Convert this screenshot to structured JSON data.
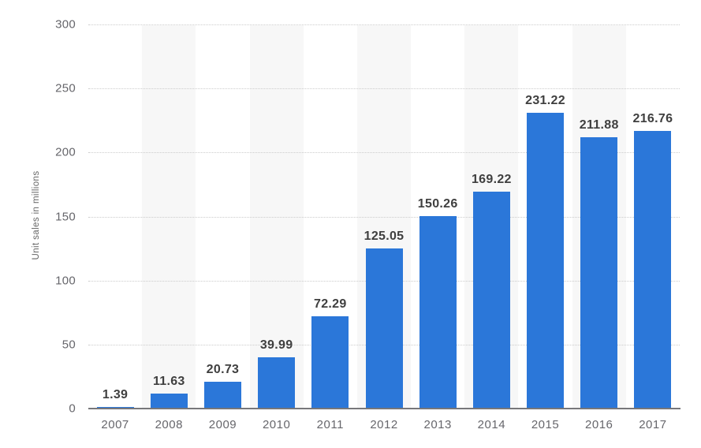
{
  "chart": {
    "bar_color": "#2b77d9",
    "band_color": "#f7f7f7",
    "gridline_color": "#cccccc",
    "axis_line_color": "#77777a",
    "value_label_color": "#3f3f3f",
    "tick_label_color": "#66666b"
  },
  "chart_data": {
    "type": "bar",
    "title": "",
    "xlabel": "",
    "ylabel": "Unit sales in millions",
    "categories": [
      "2007",
      "2008",
      "2009",
      "2010",
      "2011",
      "2012",
      "2013",
      "2014",
      "2015",
      "2016",
      "2017"
    ],
    "values": [
      1.39,
      11.63,
      20.73,
      39.99,
      72.29,
      125.05,
      150.26,
      169.22,
      231.22,
      211.88,
      216.76
    ],
    "value_labels": [
      "1.39",
      "11.63",
      "20.73",
      "39.99",
      "72.29",
      "125.05",
      "150.26",
      "169.22",
      "231.22",
      "211.88",
      "216.76"
    ],
    "ylim": [
      0,
      300
    ],
    "yticks": [
      0,
      50,
      100,
      150,
      200,
      250,
      300
    ],
    "ytick_labels": [
      "0",
      "50",
      "100",
      "150",
      "200",
      "250",
      "300"
    ],
    "grid": "horizontal-dotted",
    "legend": "none",
    "plot_bands": "alternating light-gray columns behind 2008, 2010, 2012, 2014, 2016"
  }
}
